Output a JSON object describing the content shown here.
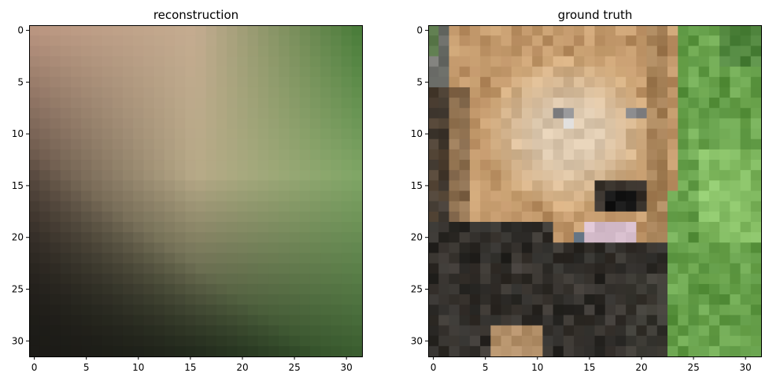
{
  "chart_data": [
    {
      "type": "heatmap",
      "title": "reconstruction",
      "xlim": [
        -0.5,
        31.5
      ],
      "ylim": [
        31.5,
        -0.5
      ],
      "x_ticks": [
        0,
        5,
        10,
        15,
        20,
        25,
        30
      ],
      "y_ticks": [
        0,
        5,
        10,
        15,
        20,
        25,
        30
      ],
      "grid": false,
      "colors": {
        "top_left": "#b99580",
        "top_center": "#c4ac90",
        "top_right": "#4b7d3b",
        "center": "#b8aa88",
        "mid_right": "#80a666",
        "bottom_left": "#1c1b17",
        "bottom_right": "#3b5e30"
      }
    },
    {
      "type": "heatmap",
      "title": "ground truth",
      "xlim": [
        -0.5,
        31.5
      ],
      "ylim": [
        31.5,
        -0.5
      ],
      "x_ticks": [
        0,
        5,
        10,
        15,
        20,
        25,
        30
      ],
      "y_ticks": [
        0,
        5,
        10,
        15,
        20,
        25,
        30
      ],
      "grid": false,
      "colors": {
        "lion_fur": "#cfa778",
        "lion_face": "#dcc8ae",
        "eye": "#8a8a8c",
        "nose": "#1a1a1a",
        "tongue": "#d9c0cf",
        "dark_mane": "#2b2a27",
        "grass": "#5a9440",
        "light_grass": "#8cc46a",
        "rock_left": "#7c7c78"
      }
    }
  ]
}
